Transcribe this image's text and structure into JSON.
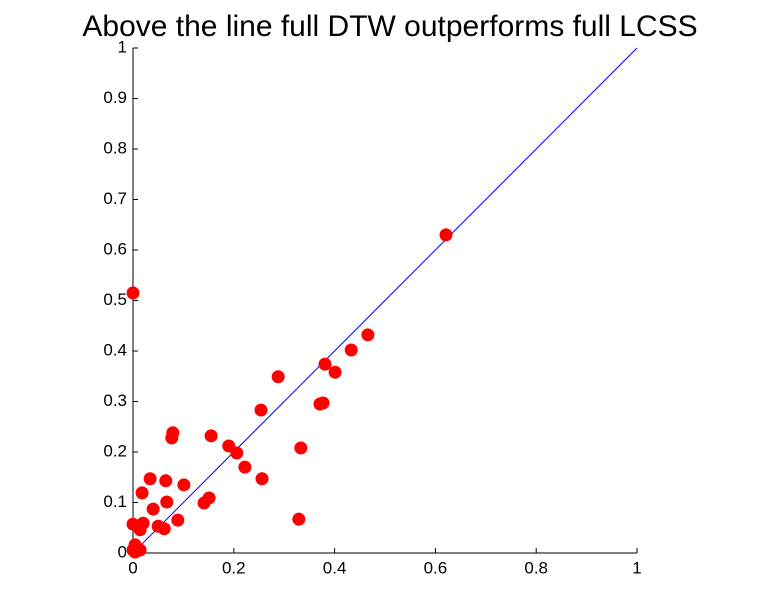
{
  "chart_data": {
    "type": "scatter",
    "title": "Above the line  full DTW  outperforms  full LCSS",
    "color": "#ff0000",
    "diagonal_color": "#0000ff",
    "x": [
      0,
      0.621,
      0.466,
      0.433,
      0.381,
      0.401,
      0.288,
      0.371,
      0.377,
      0.254,
      0.079,
      0.077,
      0.155,
      0.19,
      0.206,
      0.222,
      0.333,
      0.256,
      0.034,
      0.065,
      0.101,
      0.018,
      0.151,
      0.141,
      0.067,
      0.04,
      0.089,
      0.329,
      0,
      0.02,
      0.05,
      0.062,
      0.014,
      0.004,
      0.014,
      0,
      0.004
    ],
    "values": [
      0.515,
      0.63,
      0.432,
      0.402,
      0.374,
      0.358,
      0.349,
      0.295,
      0.297,
      0.283,
      0.238,
      0.228,
      0.232,
      0.212,
      0.198,
      0.17,
      0.208,
      0.147,
      0.147,
      0.143,
      0.135,
      0.119,
      0.109,
      0.099,
      0.101,
      0.087,
      0.065,
      0.067,
      0.057,
      0.059,
      0.053,
      0.048,
      0.046,
      0.016,
      0.006,
      0.006,
      0.002
    ],
    "xlim": [
      0,
      1
    ],
    "ylim": [
      0,
      1
    ],
    "xticks": [
      0,
      0.2,
      0.4,
      0.6,
      0.8,
      1
    ],
    "yticks": [
      0,
      0.1,
      0.2,
      0.3,
      0.4,
      0.5,
      0.6,
      0.7,
      0.8,
      0.9,
      1
    ]
  }
}
